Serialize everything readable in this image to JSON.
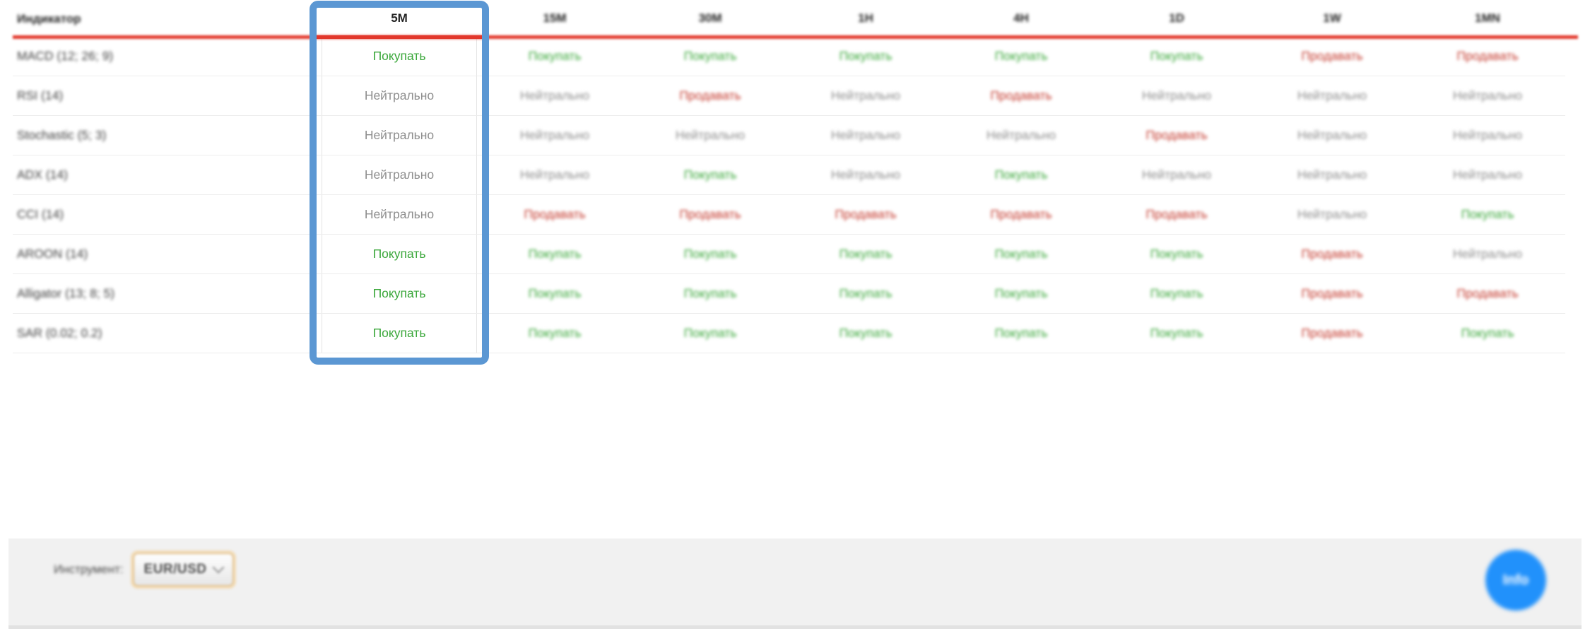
{
  "colors": {
    "buy": "#3aa73a",
    "sell": "#c43a2e",
    "neutral": "#8e8e8e",
    "header_underline": "#e2372b",
    "highlight_border": "#5b97d3",
    "info_button": "#2191fb",
    "footer_bg": "#f1f1f1"
  },
  "table": {
    "indicator_header": "Индикатор",
    "timeframes": [
      "5M",
      "15M",
      "30M",
      "1H",
      "4H",
      "1D",
      "1W",
      "1MN"
    ],
    "highlighted_timeframe": "5M",
    "signal_labels": {
      "buy": "Покупать",
      "sell": "Продавать",
      "neutral": "Нейтрально"
    },
    "rows": [
      {
        "indicator": "MACD (12; 26; 9)",
        "signals": [
          "buy",
          "buy",
          "buy",
          "buy",
          "buy",
          "buy",
          "sell",
          "sell"
        ]
      },
      {
        "indicator": "RSI (14)",
        "signals": [
          "neutral",
          "neutral",
          "sell",
          "neutral",
          "sell",
          "neutral",
          "neutral",
          "neutral"
        ]
      },
      {
        "indicator": "Stochastic (5; 3)",
        "signals": [
          "neutral",
          "neutral",
          "neutral",
          "neutral",
          "neutral",
          "sell",
          "neutral",
          "neutral"
        ]
      },
      {
        "indicator": "ADX (14)",
        "signals": [
          "neutral",
          "neutral",
          "buy",
          "neutral",
          "buy",
          "neutral",
          "neutral",
          "neutral"
        ]
      },
      {
        "indicator": "CCI (14)",
        "signals": [
          "neutral",
          "sell",
          "sell",
          "sell",
          "sell",
          "sell",
          "neutral",
          "buy"
        ]
      },
      {
        "indicator": "AROON (14)",
        "signals": [
          "buy",
          "buy",
          "buy",
          "buy",
          "buy",
          "buy",
          "sell",
          "neutral"
        ]
      },
      {
        "indicator": "Alligator (13; 8; 5)",
        "signals": [
          "buy",
          "buy",
          "buy",
          "buy",
          "buy",
          "buy",
          "sell",
          "sell"
        ]
      },
      {
        "indicator": "SAR (0.02; 0.2)",
        "signals": [
          "buy",
          "buy",
          "buy",
          "buy",
          "buy",
          "buy",
          "sell",
          "buy"
        ]
      }
    ]
  },
  "footer": {
    "instrument_label": "Инструмент:",
    "instrument_value": "EUR/USD",
    "chevron_icon": "chevron-down-icon",
    "info_button_label": "Info"
  }
}
